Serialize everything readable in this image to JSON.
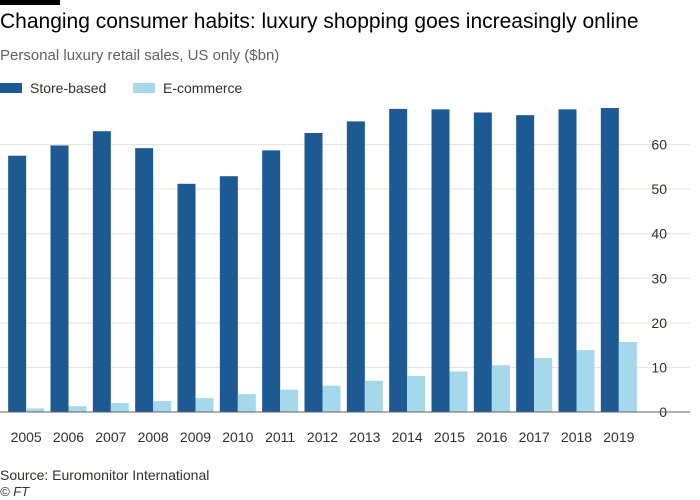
{
  "title": "Changing consumer habits: luxury shopping goes increasingly online",
  "subtitle": "Personal luxury retail sales, US only ($bn)",
  "source": "Source: Euromonitor International",
  "credit": "© FT",
  "chart_data": {
    "type": "bar",
    "categories": [
      "2005",
      "2006",
      "2007",
      "2008",
      "2009",
      "2010",
      "2011",
      "2012",
      "2013",
      "2014",
      "2015",
      "2016",
      "2017",
      "2018",
      "2019"
    ],
    "series": [
      {
        "name": "Store-based",
        "color": "#1d5a94",
        "values": [
          57.5,
          59.8,
          63.0,
          59.2,
          51.2,
          52.9,
          58.7,
          62.6,
          65.2,
          68.0,
          67.9,
          67.2,
          66.6,
          67.9,
          68.2
        ]
      },
      {
        "name": "E-commerce",
        "color": "#a6d8eb",
        "values": [
          0.8,
          1.3,
          2.0,
          2.5,
          3.1,
          4.0,
          5.0,
          5.9,
          7.0,
          8.1,
          9.1,
          10.5,
          12.1,
          13.9,
          15.7
        ]
      }
    ],
    "yticks": [
      0,
      10,
      20,
      30,
      40,
      50,
      60
    ],
    "ylim": [
      0,
      70
    ],
    "xlabel": "",
    "ylabel": "",
    "grid": true,
    "legend": "top-left"
  }
}
